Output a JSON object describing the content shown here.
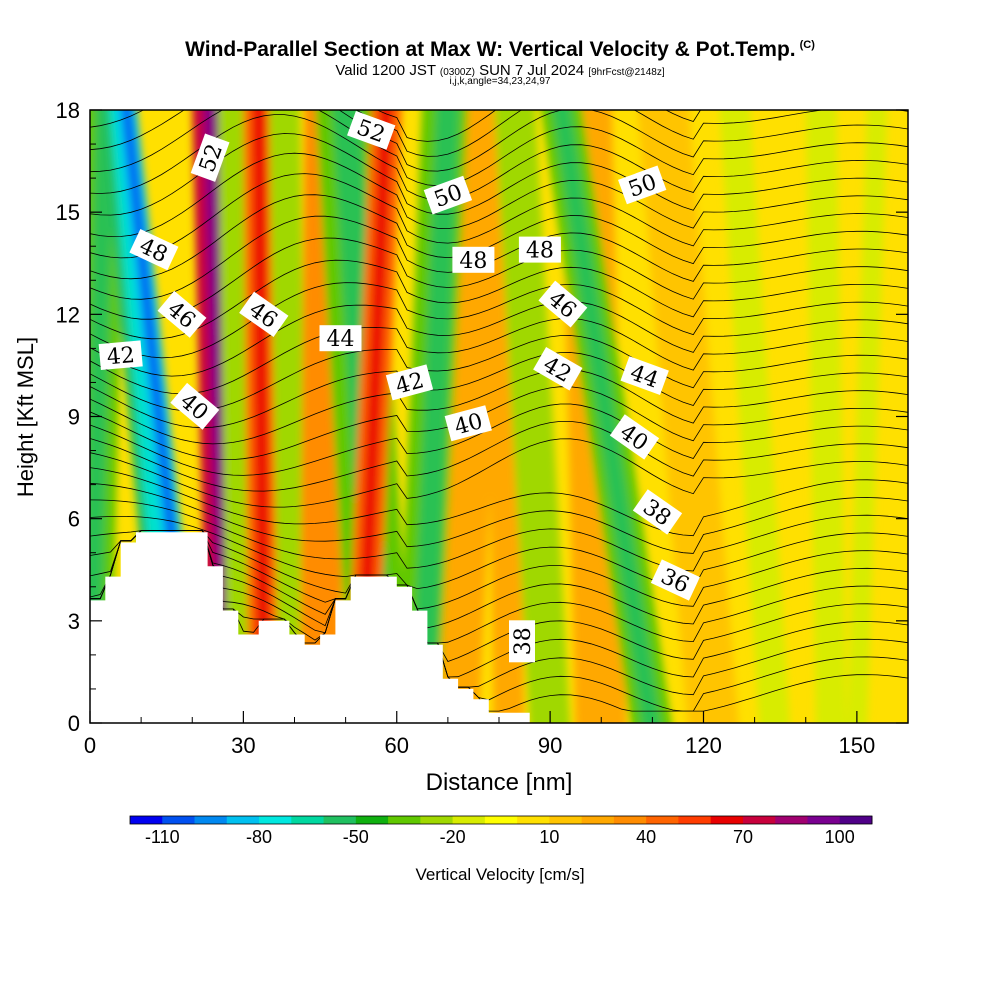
{
  "title": "Wind-Parallel Section at Max W: Vertical Velocity & Pot.Temp.",
  "title_mark": "(C)",
  "subtitle": {
    "pre": "Valid 1200 JST",
    "utc": "(0300Z)",
    "date": "SUN 7 Jul 2024",
    "fcst": "[9hrFcst@2148z]"
  },
  "subnote": "i,j,k,angle=34,23,24,97",
  "chart_data": {
    "type": "heatmap",
    "xlabel": "Distance [nm]",
    "ylabel": "Height [Kft MSL]",
    "xlim": [
      0,
      160
    ],
    "ylim": [
      0,
      18
    ],
    "x_ticks": [
      0,
      30,
      60,
      90,
      120,
      150
    ],
    "y_ticks": [
      0,
      3,
      6,
      9,
      12,
      15,
      18
    ],
    "grid": false,
    "colorbar": {
      "label": "Vertical Velocity [cm/s]",
      "range": [
        -120,
        110
      ],
      "step": 10,
      "tick_values": [
        -110,
        -80,
        -50,
        -20,
        10,
        40,
        70,
        100
      ],
      "colors": [
        "#0000f0",
        "#0050f0",
        "#0088f0",
        "#00c0f0",
        "#00e8e0",
        "#00d8a0",
        "#20c060",
        "#10b010",
        "#60c800",
        "#a0d800",
        "#d8ec00",
        "#ffff00",
        "#ffe000",
        "#ffc400",
        "#ffa800",
        "#ff8c00",
        "#ff6400",
        "#ff3c00",
        "#e80000",
        "#c8003c",
        "#a00070",
        "#7a0090",
        "#500088"
      ]
    },
    "terrain_profile": {
      "x": [
        0,
        3,
        3,
        6,
        6,
        9,
        9,
        12,
        12,
        23,
        23,
        26,
        26,
        29,
        29,
        33,
        33,
        39,
        39,
        42,
        42,
        45,
        45,
        48,
        48,
        51,
        51,
        60,
        60,
        63,
        63,
        66,
        66,
        69,
        69,
        72,
        72,
        75,
        75,
        78,
        78,
        81,
        81,
        86
      ],
      "height": [
        3.6,
        3.6,
        4.3,
        4.3,
        5.3,
        5.3,
        5.6,
        5.6,
        5.6,
        5.6,
        4.6,
        4.6,
        3.3,
        3.3,
        2.6,
        2.6,
        3.0,
        3.0,
        2.6,
        2.6,
        2.3,
        2.3,
        2.6,
        2.6,
        3.6,
        3.6,
        4.3,
        4.3,
        4.0,
        4.0,
        3.3,
        3.3,
        2.3,
        2.3,
        1.3,
        1.3,
        1.0,
        1.0,
        0.7,
        0.7,
        0.3,
        0.3,
        0.3,
        0.3
      ]
    },
    "velocity_bands": [
      {
        "x": 0,
        "top_x": 3,
        "halfwidth": 4,
        "w": -40
      },
      {
        "x": 16,
        "top_x": 5,
        "halfwidth": 3,
        "w": -60
      },
      {
        "x": 20,
        "top_x": 7,
        "halfwidth": 2,
        "w": -90
      },
      {
        "x": 27,
        "top_x": 24,
        "halfwidth": 4,
        "w": 75
      },
      {
        "x": 30,
        "top_x": 28,
        "halfwidth": 3,
        "w": -25
      },
      {
        "x": 34,
        "top_x": 33,
        "halfwidth": 3,
        "w": 45
      },
      {
        "x": 40,
        "top_x": 38,
        "halfwidth": 3,
        "w": -30
      },
      {
        "x": 45,
        "top_x": 46,
        "halfwidth": 4,
        "w": 30
      },
      {
        "x": 57,
        "top_x": 50,
        "halfwidth": 6,
        "w": -40
      },
      {
        "x": 53,
        "top_x": 58,
        "halfwidth": 3,
        "w": 40
      },
      {
        "x": 65,
        "top_x": 70,
        "halfwidth": 5,
        "w": -40
      },
      {
        "x": 72,
        "top_x": 78,
        "halfwidth": 4,
        "w": 20
      },
      {
        "x": 82,
        "top_x": 80,
        "halfwidth": 3,
        "w": 25
      },
      {
        "x": 90,
        "top_x": 83,
        "halfwidth": 4,
        "w": -30
      },
      {
        "x": 100,
        "top_x": 97,
        "halfwidth": 5,
        "w": 25
      },
      {
        "x": 110,
        "top_x": 92,
        "halfwidth": 4,
        "w": -35
      },
      {
        "x": 122,
        "top_x": 112,
        "halfwidth": 5,
        "w": 15
      },
      {
        "x": 134,
        "top_x": 126,
        "halfwidth": 3,
        "w": -20
      },
      {
        "x": 145,
        "top_x": 143,
        "halfwidth": 3,
        "w": -15
      },
      {
        "x": 150,
        "top_x": 154,
        "halfwidth": 2,
        "w": -15
      }
    ],
    "contour_labels": [
      {
        "text": "52",
        "x": 23.5,
        "y": 16.6,
        "angle": -70
      },
      {
        "text": "52",
        "x": 55,
        "y": 17.4,
        "angle": 20
      },
      {
        "text": "50",
        "x": 70,
        "y": 15.5,
        "angle": -20
      },
      {
        "text": "50",
        "x": 108,
        "y": 15.8,
        "angle": -20
      },
      {
        "text": "48",
        "x": 12.5,
        "y": 13.9,
        "angle": 25
      },
      {
        "text": "48",
        "x": 75,
        "y": 13.6,
        "angle": 0
      },
      {
        "text": "48",
        "x": 88,
        "y": 13.9,
        "angle": 0
      },
      {
        "text": "46",
        "x": 18,
        "y": 12.0,
        "angle": 40
      },
      {
        "text": "46",
        "x": 34,
        "y": 12.0,
        "angle": 35
      },
      {
        "text": "46",
        "x": 92.5,
        "y": 12.3,
        "angle": 40
      },
      {
        "text": "44",
        "x": 49,
        "y": 11.3,
        "angle": 0
      },
      {
        "text": "44",
        "x": 108.5,
        "y": 10.2,
        "angle": 20
      },
      {
        "text": "42",
        "x": 6,
        "y": 10.8,
        "angle": -5
      },
      {
        "text": "42",
        "x": 62.5,
        "y": 10.0,
        "angle": -15
      },
      {
        "text": "42",
        "x": 91.5,
        "y": 10.4,
        "angle": 30
      },
      {
        "text": "40",
        "x": 20.5,
        "y": 9.3,
        "angle": 40
      },
      {
        "text": "40",
        "x": 74,
        "y": 8.8,
        "angle": -15
      },
      {
        "text": "40",
        "x": 106.5,
        "y": 8.4,
        "angle": 35
      },
      {
        "text": "38",
        "x": 111,
        "y": 6.2,
        "angle": 35
      },
      {
        "text": "38",
        "x": 84.5,
        "y": 2.4,
        "angle": -90
      },
      {
        "text": "36",
        "x": 114.5,
        "y": 4.2,
        "angle": 25
      }
    ]
  }
}
